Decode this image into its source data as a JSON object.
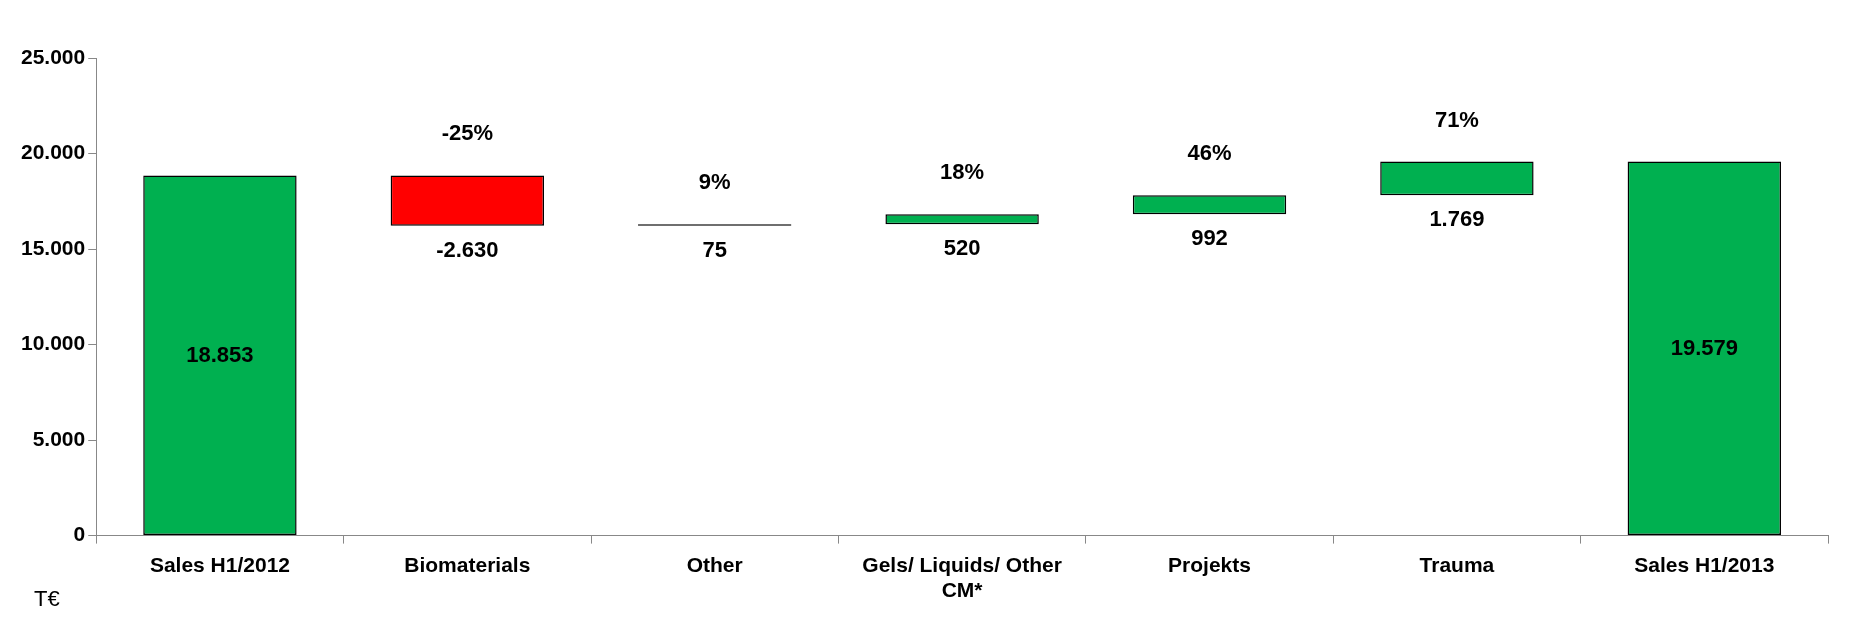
{
  "chart_data": {
    "type": "bar",
    "ylabel": "T€",
    "categories": [
      "Sales H1/2012",
      "Biomaterials",
      "Other",
      "Gels/ Liquids/ Other CM*",
      "Projekts",
      "Trauma",
      "Sales H1/2013"
    ],
    "values": [
      18853,
      -2630,
      75,
      520,
      992,
      1769,
      19579
    ],
    "base": [
      0,
      18853,
      16223,
      16298,
      16818,
      17810,
      0
    ],
    "colors": [
      "#00b050",
      "#ff0000",
      "#000000",
      "#00b050",
      "#00b050",
      "#00b050",
      "#00b050"
    ],
    "value_labels": [
      "18.853",
      "-2.630",
      "75",
      "520",
      "992",
      "1.769",
      "19.579"
    ],
    "annotations": [
      {
        "text": "-25%",
        "x": "Biomaterials",
        "y": 18853
      },
      {
        "text": "9%",
        "x": "Other",
        "y": 16298
      },
      {
        "text": "18%",
        "x": "Gels/ Liquids/ Other CM*",
        "y": 16818
      },
      {
        "text": "46%",
        "x": "Projekts",
        "y": 17810
      },
      {
        "text": "71%",
        "x": "Trauma",
        "y": 19579
      }
    ],
    "ylim": [
      0,
      25000
    ],
    "yticks": [
      {
        "value": 0,
        "label": "0"
      },
      {
        "value": 5000,
        "label": "5.000"
      },
      {
        "value": 10000,
        "label": "10.000"
      },
      {
        "value": 15000,
        "label": "15.000"
      },
      {
        "value": 20000,
        "label": "20.000"
      },
      {
        "value": 25000,
        "label": "25.000"
      }
    ],
    "grid": false,
    "legend": false
  }
}
